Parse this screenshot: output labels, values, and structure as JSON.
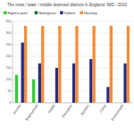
{
  "chart_data": {
    "type": "bar",
    "title": "The most / least / middle deprived districts in England: IMD - 2010",
    "categories": [
      "Income",
      "Employment",
      "Health",
      "Education",
      "Barriers",
      "Crime",
      "Environment"
    ],
    "series": [
      {
        "name": "Highest point",
        "color": "#33cc33",
        "values": [
          120,
          101,
          null,
          null,
          null,
          null,
          null
        ]
      },
      {
        "name": "Nottingham",
        "color": "#1f6b3a",
        "values": [
          null,
          null,
          null,
          null,
          null,
          null,
          null
        ]
      },
      {
        "name": "Salford",
        "color": "#2b2c80",
        "values": [
          259,
          169,
          150,
          169,
          188,
          68,
          169
        ]
      },
      {
        "name": "Hackney",
        "color": "#f28e3c",
        "values": [
          331,
          331,
          331,
          331,
          331,
          331,
          331
        ]
      }
    ],
    "ylim": [
      0,
      350
    ],
    "yticks": [
      0,
      50,
      100,
      150,
      200,
      250,
      300,
      350
    ],
    "grid": true,
    "legend": "top"
  }
}
